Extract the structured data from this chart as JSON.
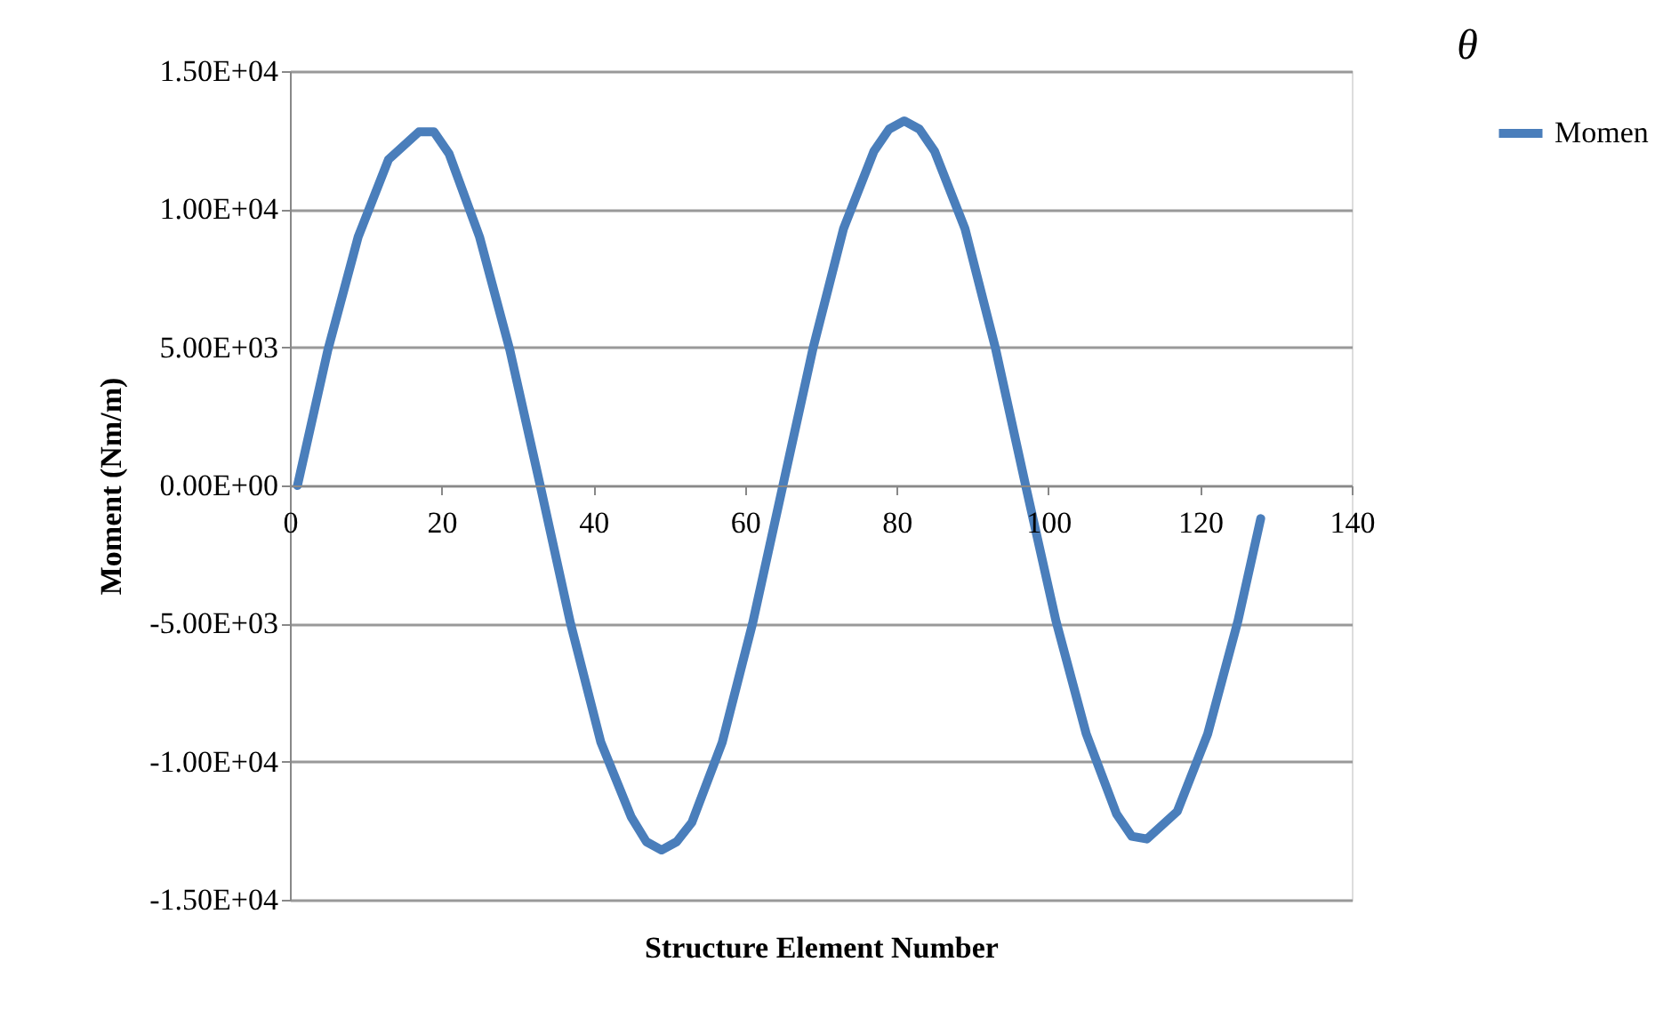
{
  "chart_data": {
    "type": "line",
    "xlabel": "Structure Element Number",
    "ylabel": "Moment (Nm/m)",
    "annotations": [
      "θ"
    ],
    "x": [
      1,
      5,
      9,
      13,
      17,
      19,
      21,
      25,
      29,
      33,
      37,
      41,
      45,
      47,
      49,
      51,
      53,
      57,
      61,
      65,
      69,
      73,
      77,
      79,
      81,
      83,
      85,
      89,
      93,
      97,
      101,
      105,
      109,
      111,
      113,
      115,
      117,
      121,
      125,
      128
    ],
    "series": [
      {
        "name": "Momen",
        "color": "#4a7ebb",
        "values": [
          0,
          4900,
          9000,
          11800,
          12800,
          12800,
          12000,
          9000,
          4900,
          0,
          -5000,
          -9300,
          -12000,
          -12900,
          -13200,
          -12900,
          -12200,
          -9300,
          -5000,
          0,
          5000,
          9300,
          12100,
          12900,
          13200,
          12900,
          12100,
          9300,
          5000,
          0,
          -4900,
          -9000,
          -11900,
          -12700,
          -12800,
          -12300,
          -11800,
          -9000,
          -4900,
          -1200
        ]
      }
    ],
    "xlim": [
      0,
      140
    ],
    "xticks": [
      0,
      20,
      40,
      60,
      80,
      100,
      120,
      140
    ],
    "ylim": [
      -15000,
      15000
    ],
    "yticks": [
      {
        "value": -15000,
        "label": "-1.50E+04"
      },
      {
        "value": -10000,
        "label": "-1.00E+04"
      },
      {
        "value": -5000,
        "label": "-5.00E+03"
      },
      {
        "value": 0,
        "label": "0.00E+00"
      },
      {
        "value": 5000,
        "label": "5.00E+03"
      },
      {
        "value": 10000,
        "label": "1.00E+04"
      },
      {
        "value": 15000,
        "label": "1.50E+04"
      }
    ],
    "grid": "y",
    "legend": "right",
    "marker": "none",
    "line_style": "solid"
  }
}
